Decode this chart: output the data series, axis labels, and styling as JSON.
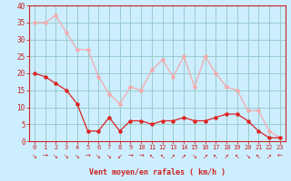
{
  "title": "",
  "xlabel": "Vent moyen/en rafales ( km/h )",
  "x": [
    0,
    1,
    2,
    3,
    4,
    5,
    6,
    7,
    8,
    9,
    10,
    11,
    12,
    13,
    14,
    15,
    16,
    17,
    18,
    19,
    20,
    21,
    22,
    23
  ],
  "y_mean": [
    20,
    19,
    17,
    15,
    11,
    3,
    3,
    7,
    3,
    6,
    6,
    5,
    6,
    6,
    7,
    6,
    6,
    7,
    8,
    8,
    6,
    3,
    1,
    1
  ],
  "y_gust": [
    35,
    35,
    37,
    32,
    27,
    27,
    19,
    14,
    11,
    16,
    15,
    21,
    24,
    19,
    25,
    16,
    25,
    20,
    16,
    15,
    9,
    9,
    3,
    1
  ],
  "wind_dirs": [
    "↘",
    "→",
    "↘",
    "↘",
    "↘",
    "→",
    "↘",
    "↘",
    "↙",
    "→",
    "→",
    "↖",
    "↖",
    "↗",
    "↗",
    "↘",
    "↗",
    "↖",
    "↗",
    "↖",
    "↘",
    "↖",
    "↗",
    "←"
  ],
  "line_color_mean": "#dd2222",
  "line_color_gust": "#f4aaaa",
  "bg_color": "#cceeff",
  "grid_color": "#99cccc",
  "axis_color": "#cc2222",
  "text_color": "#cc2222",
  "ylim": [
    0,
    40
  ],
  "xlim": [
    -0.5,
    23.5
  ],
  "yticks": [
    0,
    5,
    10,
    15,
    20,
    25,
    30,
    35,
    40
  ]
}
